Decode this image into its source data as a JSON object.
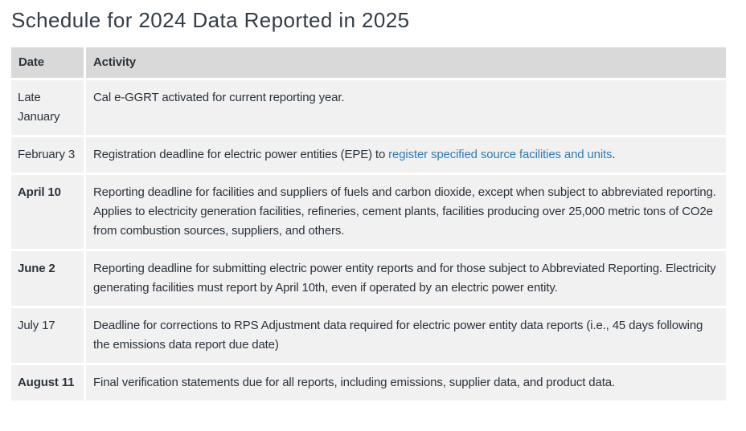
{
  "page": {
    "title": "Schedule for 2024 Data Reported in 2025"
  },
  "colors": {
    "title_text": "#333d47",
    "body_text": "#2b333c",
    "header_background": "#d9d9d9",
    "row_background": "#f1f1f2",
    "link": "#2e7cb5"
  },
  "table": {
    "headers": {
      "date": "Date",
      "activity": "Activity"
    },
    "rows": [
      {
        "date": "Late January",
        "date_bold": false,
        "activity_before": "Cal e-GGRT activated for current reporting year.",
        "link_text": "",
        "activity_after": ""
      },
      {
        "date": "February 3",
        "date_bold": false,
        "activity_before": "Registration deadline for electric power entities (EPE) to ",
        "link_text": "register specified source facilities and units",
        "activity_after": "."
      },
      {
        "date": "April 10",
        "date_bold": true,
        "activity_before": "Reporting deadline for facilities and suppliers of fuels and carbon dioxide, except when subject to abbreviated reporting. Applies to electricity generation facilities, refineries, cement plants, facilities producing over 25,000 metric tons of CO2e from combustion sources, suppliers, and others.",
        "link_text": "",
        "activity_after": ""
      },
      {
        "date": "June 2",
        "date_bold": true,
        "activity_before": "Reporting deadline for submitting electric power entity reports and for those subject to Abbreviated Reporting. Electricity generating facilities must report by April 10th, even if operated by an electric power entity.",
        "link_text": "",
        "activity_after": ""
      },
      {
        "date": "July 17",
        "date_bold": false,
        "activity_before": "Deadline for corrections to RPS Adjustment data required for electric power entity data reports (i.e., 45 days following the emissions data report due date)",
        "link_text": "",
        "activity_after": ""
      },
      {
        "date": "August 11",
        "date_bold": true,
        "activity_before": "Final verification statements due for all reports, including emissions, supplier data, and product data.",
        "link_text": "",
        "activity_after": ""
      }
    ]
  }
}
